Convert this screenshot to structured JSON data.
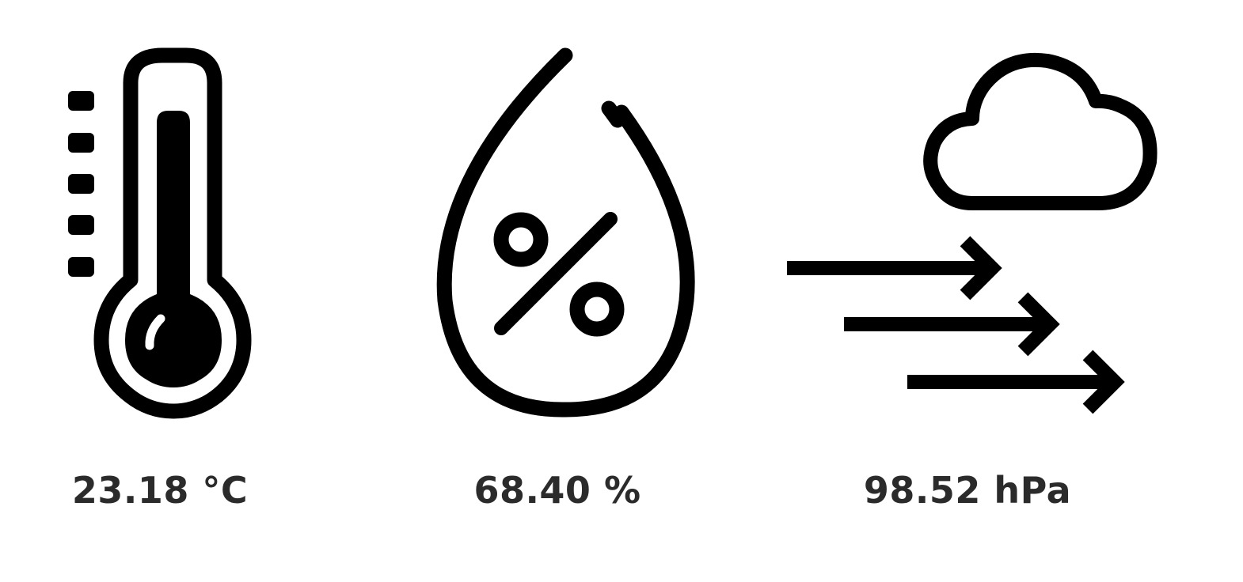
{
  "readings": {
    "temperature": {
      "icon": "thermometer-icon",
      "value": "23.18 °C"
    },
    "humidity": {
      "icon": "humidity-drop-icon",
      "value": "68.40 %"
    },
    "pressure": {
      "icon": "wind-cloud-icon",
      "value": "98.52 hPa"
    }
  },
  "colors": {
    "icon_stroke": "#000000",
    "value_text": "#2b2b2b",
    "background": "#ffffff"
  }
}
